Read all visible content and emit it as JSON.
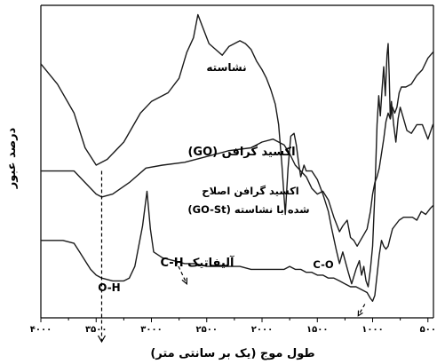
{
  "chart_data": {
    "type": "line",
    "xlabel": "طول موج (یک بر سانتی متر)",
    "ylabel": "درصد عبور",
    "x_ticks": [
      {
        "value": 4000,
        "label": "۴۰۰۰"
      },
      {
        "value": 3500,
        "label": "۳۵۰۰"
      },
      {
        "value": 3000,
        "label": "۳۰۰۰"
      },
      {
        "value": 2500,
        "label": "۲۵۰۰"
      },
      {
        "value": 2000,
        "label": "۲۰۰۰"
      },
      {
        "value": 1500,
        "label": "۱۵۰۰"
      },
      {
        "value": 1000,
        "label": "۱۰۰۰"
      },
      {
        "value": 500,
        "label": "۵۰۰"
      }
    ],
    "xlim": [
      4000,
      450
    ],
    "ylim": [
      0,
      100
    ],
    "x_reversed": true,
    "series": [
      {
        "name": "نشاسته",
        "points": [
          [
            4000,
            81
          ],
          [
            3850,
            74
          ],
          [
            3700,
            64
          ],
          [
            3600,
            52
          ],
          [
            3500,
            46
          ],
          [
            3400,
            48
          ],
          [
            3250,
            54
          ],
          [
            3100,
            64
          ],
          [
            3000,
            68
          ],
          [
            2850,
            71
          ],
          [
            2750,
            76
          ],
          [
            2680,
            85
          ],
          [
            2620,
            90
          ],
          [
            2580,
            98
          ],
          [
            2540,
            94
          ],
          [
            2480,
            88
          ],
          [
            2420,
            86
          ],
          [
            2360,
            84
          ],
          [
            2300,
            87
          ],
          [
            2200,
            89
          ],
          [
            2150,
            88
          ],
          [
            2100,
            86
          ],
          [
            2050,
            82
          ],
          [
            2000,
            79
          ],
          [
            1960,
            76
          ],
          [
            1920,
            72
          ],
          [
            1880,
            67
          ],
          [
            1850,
            60
          ],
          [
            1820,
            46
          ],
          [
            1790,
            29
          ],
          [
            1765,
            45
          ],
          [
            1740,
            56
          ],
          [
            1710,
            57
          ],
          [
            1690,
            53
          ],
          [
            1670,
            47
          ],
          [
            1650,
            42
          ],
          [
            1620,
            46
          ],
          [
            1600,
            44
          ],
          [
            1550,
            44
          ],
          [
            1500,
            41
          ],
          [
            1450,
            36
          ],
          [
            1400,
            30
          ],
          [
            1370,
            24
          ],
          [
            1330,
            17
          ],
          [
            1300,
            12
          ],
          [
            1270,
            16
          ],
          [
            1220,
            9
          ],
          [
            1190,
            5
          ],
          [
            1150,
            10
          ],
          [
            1120,
            13
          ],
          [
            1100,
            8
          ],
          [
            1080,
            11
          ],
          [
            1060,
            6
          ],
          [
            1040,
            4
          ],
          [
            1020,
            10
          ],
          [
            1000,
            18
          ],
          [
            980,
            36
          ],
          [
            960,
            60
          ],
          [
            945,
            70
          ],
          [
            930,
            63
          ],
          [
            915,
            72
          ],
          [
            900,
            80
          ],
          [
            885,
            70
          ],
          [
            870,
            84
          ],
          [
            860,
            88
          ],
          [
            850,
            77
          ],
          [
            840,
            62
          ],
          [
            830,
            68
          ],
          [
            810,
            60
          ],
          [
            790,
            54
          ],
          [
            770,
            62
          ],
          [
            750,
            66
          ],
          [
            720,
            62
          ],
          [
            690,
            58
          ],
          [
            650,
            57
          ],
          [
            600,
            60
          ],
          [
            550,
            60
          ],
          [
            500,
            55
          ],
          [
            455,
            60
          ]
        ]
      },
      {
        "name": "اکسید گرافن (GO)",
        "points": [
          [
            4000,
            44
          ],
          [
            3800,
            44
          ],
          [
            3700,
            44
          ],
          [
            3600,
            40
          ],
          [
            3500,
            36
          ],
          [
            3450,
            35
          ],
          [
            3350,
            36
          ],
          [
            3200,
            40
          ],
          [
            3050,
            45
          ],
          [
            2900,
            46
          ],
          [
            2700,
            47
          ],
          [
            2500,
            49
          ],
          [
            2300,
            51
          ],
          [
            2100,
            52
          ],
          [
            2000,
            54
          ],
          [
            1900,
            55
          ],
          [
            1800,
            53
          ],
          [
            1750,
            50
          ],
          [
            1700,
            46
          ],
          [
            1650,
            44
          ],
          [
            1600,
            42
          ],
          [
            1550,
            38
          ],
          [
            1500,
            36
          ],
          [
            1450,
            37
          ],
          [
            1400,
            34
          ],
          [
            1350,
            28
          ],
          [
            1300,
            23
          ],
          [
            1270,
            25
          ],
          [
            1230,
            27
          ],
          [
            1200,
            21
          ],
          [
            1170,
            20
          ],
          [
            1140,
            18
          ],
          [
            1110,
            20
          ],
          [
            1080,
            22
          ],
          [
            1050,
            24
          ],
          [
            1020,
            30
          ],
          [
            1000,
            36
          ],
          [
            980,
            40
          ],
          [
            960,
            42
          ],
          [
            940,
            45
          ],
          [
            920,
            50
          ],
          [
            900,
            55
          ],
          [
            880,
            61
          ],
          [
            860,
            64
          ],
          [
            840,
            62
          ],
          [
            820,
            66
          ],
          [
            800,
            64
          ],
          [
            780,
            66
          ],
          [
            760,
            71
          ],
          [
            740,
            73
          ],
          [
            700,
            73
          ],
          [
            650,
            74
          ],
          [
            600,
            77
          ],
          [
            550,
            79
          ],
          [
            500,
            83
          ],
          [
            455,
            85
          ]
        ]
      },
      {
        "name": "اکسید گرافن اصلاح شده با نشاسته (GO-St)",
        "points": [
          [
            4000,
            20
          ],
          [
            3900,
            20
          ],
          [
            3800,
            20
          ],
          [
            3700,
            19
          ],
          [
            3650,
            16
          ],
          [
            3600,
            13
          ],
          [
            3550,
            10
          ],
          [
            3500,
            8
          ],
          [
            3450,
            7
          ],
          [
            3350,
            6
          ],
          [
            3250,
            6
          ],
          [
            3200,
            7
          ],
          [
            3150,
            11
          ],
          [
            3080,
            25
          ],
          [
            3040,
            37
          ],
          [
            3010,
            24
          ],
          [
            2980,
            16
          ],
          [
            2900,
            14
          ],
          [
            2800,
            13
          ],
          [
            2700,
            12
          ],
          [
            2600,
            12
          ],
          [
            2500,
            11
          ],
          [
            2400,
            11
          ],
          [
            2300,
            11
          ],
          [
            2200,
            11
          ],
          [
            2100,
            10
          ],
          [
            2000,
            10
          ],
          [
            1900,
            10
          ],
          [
            1800,
            10
          ],
          [
            1750,
            11
          ],
          [
            1700,
            10
          ],
          [
            1650,
            10
          ],
          [
            1600,
            9
          ],
          [
            1550,
            9
          ],
          [
            1500,
            8
          ],
          [
            1450,
            8
          ],
          [
            1400,
            7
          ],
          [
            1350,
            7
          ],
          [
            1300,
            6
          ],
          [
            1250,
            5
          ],
          [
            1200,
            4
          ],
          [
            1150,
            4
          ],
          [
            1100,
            3
          ],
          [
            1050,
            2
          ],
          [
            1020,
            0
          ],
          [
            1000,
            -1
          ],
          [
            980,
            1
          ],
          [
            960,
            8
          ],
          [
            940,
            15
          ],
          [
            920,
            20
          ],
          [
            900,
            18
          ],
          [
            880,
            17
          ],
          [
            860,
            18
          ],
          [
            840,
            21
          ],
          [
            820,
            24
          ],
          [
            800,
            25
          ],
          [
            760,
            27
          ],
          [
            720,
            28
          ],
          [
            680,
            28
          ],
          [
            640,
            28
          ],
          [
            600,
            27
          ],
          [
            560,
            30
          ],
          [
            520,
            29
          ],
          [
            480,
            31
          ],
          [
            455,
            32
          ]
        ]
      }
    ],
    "annotations": [
      {
        "id": "starch_label",
        "text": "نشاسته"
      },
      {
        "id": "go_label",
        "text": "اکسید گرافن (GO)"
      },
      {
        "id": "gost_label_1",
        "text": "اکسید گرافن اصلاح"
      },
      {
        "id": "gost_label_2",
        "text": "شده با نشاسته (GO-St)"
      },
      {
        "id": "oh_label",
        "text": "O-H"
      },
      {
        "id": "ch_label",
        "text": "آلیفاتیک C-H"
      },
      {
        "id": "co_label",
        "text": "C-O"
      }
    ],
    "markers": [
      {
        "id": "oh_marker",
        "x": 3450,
        "from": 44,
        "to": 7,
        "end_y": -15
      },
      {
        "id": "ch_marker",
        "from_x": 2780,
        "from_y": 13,
        "to_x": 2680,
        "to_y": 5
      },
      {
        "id": "co_marker",
        "from_x": 1070,
        "from_y": -2,
        "to_x": 1130,
        "to_y": -6
      }
    ]
  }
}
